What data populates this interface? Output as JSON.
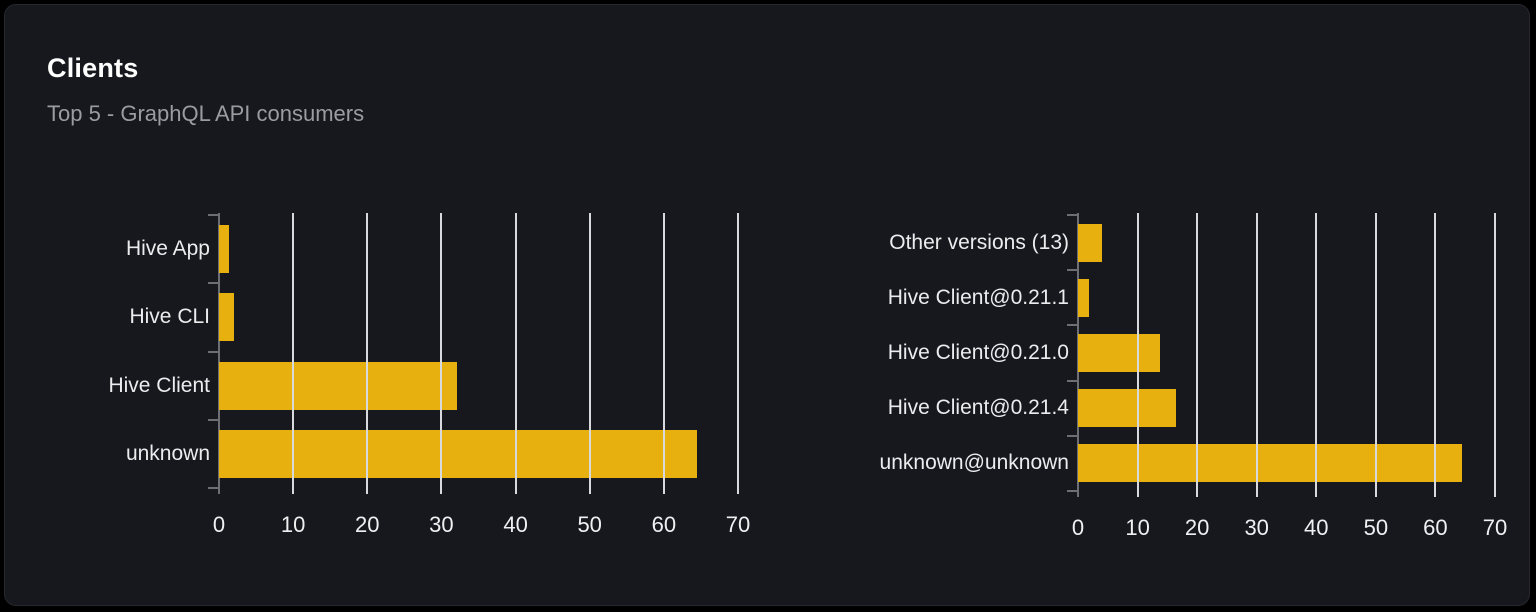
{
  "panel": {
    "title": "Clients",
    "subtitle": "Top 5 - GraphQL API consumers"
  },
  "colors": {
    "page_background": "#000000",
    "card_background": "#16181d",
    "card_border": "#26282e",
    "bar": "#e8b00e",
    "gridline": "#d8d9dd",
    "axis": "#6c6e75",
    "category_label": "#ebecee",
    "tick_label": "#eef0f2",
    "title": "#ffffff",
    "subtitle": "#9b9ca3"
  },
  "chart_data": [
    {
      "type": "bar",
      "orientation": "horizontal",
      "title": "",
      "xlabel": "",
      "ylabel": "",
      "categories": [
        "Hive App",
        "Hive CLI",
        "Hive Client",
        "unknown"
      ],
      "values": [
        1.3,
        2,
        32.1,
        64.5
      ],
      "xlim": [
        0,
        70
      ],
      "xticks": [
        0,
        10,
        20,
        30,
        40,
        50,
        60,
        70
      ],
      "grid": true,
      "legend": false,
      "bar_color": "#e8b00e"
    },
    {
      "type": "bar",
      "orientation": "horizontal",
      "title": "",
      "xlabel": "",
      "ylabel": "",
      "categories": [
        "Other versions (13)",
        "Hive Client@0.21.1",
        "Hive Client@0.21.0",
        "Hive Client@0.21.4",
        "unknown@unknown"
      ],
      "values": [
        4,
        1.9,
        13.7,
        16.4,
        64.5
      ],
      "xlim": [
        0,
        70
      ],
      "xticks": [
        0,
        10,
        20,
        30,
        40,
        50,
        60,
        70
      ],
      "grid": true,
      "legend": false,
      "bar_color": "#e8b00e"
    }
  ]
}
